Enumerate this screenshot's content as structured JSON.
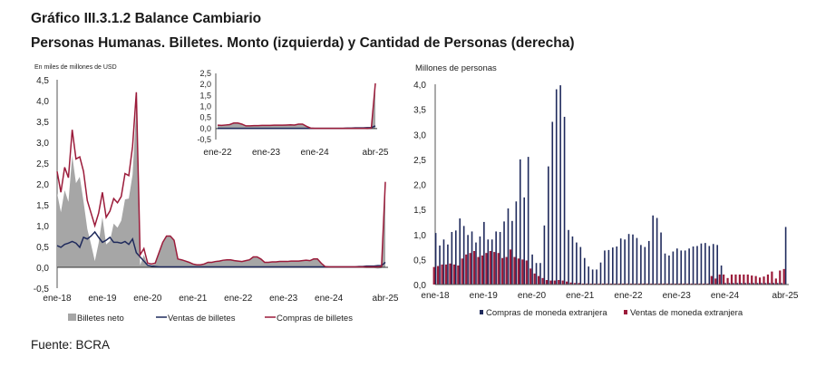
{
  "title_line1": "Gráfico III.3.1.2 Balance Cambiario",
  "title_line2": "Personas Humanas. Billetes. Monto (izquierda) y Cantidad de Personas (derecha)",
  "source": "Fuente: BCRA",
  "chart_data": [
    {
      "type": "area+line",
      "ylabel": "En miles de millones de USD",
      "ylim": [
        -0.5,
        4.5
      ],
      "yticks": [
        "4,5",
        "4,0",
        "3,5",
        "3,0",
        "2,5",
        "2,0",
        "1,5",
        "1,0",
        "0,5",
        "0,0",
        "-0,5"
      ],
      "xticks": [
        "ene-18",
        "ene-19",
        "ene-20",
        "ene-21",
        "ene-22",
        "ene-23",
        "ene-24",
        "abr-25"
      ],
      "x_range": [
        "2018-01",
        "2025-04"
      ],
      "legend_position": "bottom",
      "colors": {
        "neto": "#a6a6a6",
        "ventas": "#1f2a5c",
        "compras": "#9b1b3a"
      },
      "series": [
        {
          "name": "Billetes neto",
          "type": "area",
          "values": [
            1.78,
            1.32,
            1.85,
            1.57,
            2.68,
            2.02,
            2.17,
            1.58,
            0.92,
            0.55,
            0.15,
            0.58,
            1.2,
            0.55,
            0.63,
            1.05,
            0.95,
            1.12,
            1.63,
            1.65,
            2.22,
            3.85,
            0.05,
            0.3,
            0.05,
            0.05,
            0.08,
            0.34,
            0.59,
            0.74,
            0.74,
            0.64,
            0.19,
            0.17,
            0.14,
            0.11,
            0.07,
            0.05,
            0.05,
            0.07,
            0.11,
            0.11,
            0.13,
            0.14,
            0.16,
            0.17,
            0.17,
            0.15,
            0.14,
            0.13,
            0.15,
            0.17,
            0.24,
            0.24,
            0.19,
            0.11,
            0.11,
            0.12,
            0.12,
            0.13,
            0.13,
            0.13,
            0.14,
            0.14,
            0.14,
            0.15,
            0.16,
            0.15,
            0.19,
            0.19,
            0.09,
            0.01,
            0,
            0,
            0,
            0,
            0,
            0,
            0,
            0,
            -0.01,
            -0.01,
            -0.02,
            -0.02,
            -0.02,
            -0.03,
            -0.02,
            1.93
          ]
        },
        {
          "name": "Ventas de billetes",
          "type": "line",
          "values": [
            0.52,
            0.48,
            0.55,
            0.58,
            0.62,
            0.58,
            0.48,
            0.72,
            0.68,
            0.75,
            0.85,
            0.72,
            0.6,
            0.65,
            0.72,
            0.6,
            0.6,
            0.58,
            0.62,
            0.55,
            0.68,
            0.35,
            0.25,
            0.15,
            0.05,
            0.03,
            0.02,
            0.01,
            0.01,
            0.01,
            0.01,
            0.01,
            0.01,
            0.01,
            0.01,
            0.01,
            0.01,
            0.01,
            0.01,
            0.01,
            0.01,
            0.01,
            0.01,
            0.01,
            0.01,
            0.01,
            0.01,
            0.01,
            0.01,
            0.01,
            0.01,
            0.01,
            0.01,
            0.01,
            0.01,
            0.01,
            0.01,
            0.01,
            0.01,
            0.01,
            0.01,
            0.01,
            0.01,
            0.01,
            0.01,
            0.01,
            0.01,
            0.01,
            0.01,
            0.01,
            0.01,
            0.01,
            0.01,
            0.01,
            0.01,
            0.01,
            0.01,
            0.01,
            0.01,
            0.01,
            0.02,
            0.02,
            0.03,
            0.03,
            0.03,
            0.04,
            0.04,
            0.12
          ]
        },
        {
          "name": "Compras de billetes",
          "type": "line",
          "values": [
            2.3,
            1.8,
            2.4,
            2.15,
            3.3,
            2.6,
            2.65,
            2.3,
            1.6,
            1.3,
            1.0,
            1.3,
            1.8,
            1.2,
            1.35,
            1.65,
            1.55,
            1.7,
            2.25,
            2.2,
            2.9,
            4.2,
            0.3,
            0.45,
            0.1,
            0.08,
            0.1,
            0.35,
            0.6,
            0.75,
            0.75,
            0.65,
            0.2,
            0.18,
            0.15,
            0.12,
            0.08,
            0.06,
            0.06,
            0.08,
            0.12,
            0.12,
            0.14,
            0.15,
            0.17,
            0.18,
            0.18,
            0.16,
            0.15,
            0.14,
            0.16,
            0.18,
            0.25,
            0.25,
            0.2,
            0.12,
            0.12,
            0.13,
            0.13,
            0.14,
            0.14,
            0.14,
            0.15,
            0.15,
            0.15,
            0.16,
            0.17,
            0.16,
            0.2,
            0.2,
            0.1,
            0.02,
            0.01,
            0.01,
            0.01,
            0.01,
            0.01,
            0.01,
            0.01,
            0.01,
            0.01,
            0.01,
            0.01,
            0.01,
            0.01,
            0.01,
            0.02,
            2.05
          ]
        }
      ],
      "inset": {
        "ylim": [
          -0.5,
          2.5
        ],
        "yticks": [
          "2,5",
          "2,0",
          "1,5",
          "1,0",
          "0,5",
          "0,0",
          "-0,5"
        ],
        "xticks": [
          "ene-22",
          "ene-23",
          "ene-24",
          "abr-25"
        ],
        "x_range": [
          "2022-01",
          "2025-04"
        ]
      }
    },
    {
      "type": "bar",
      "ylabel": "Millones de personas",
      "ylim": [
        0,
        4.0
      ],
      "yticks": [
        "4,0",
        "3,5",
        "3,0",
        "2,5",
        "2,0",
        "1,5",
        "1,0",
        "0,5",
        "0,0"
      ],
      "xticks": [
        "ene-18",
        "ene-19",
        "ene-20",
        "ene-21",
        "ene-22",
        "ene-23",
        "ene-24",
        "abr-25"
      ],
      "x_range": [
        "2018-01",
        "2025-04"
      ],
      "legend_position": "bottom",
      "colors": {
        "compras": "#1f2a5c",
        "ventas": "#9b1b3a"
      },
      "series": [
        {
          "name": "Compras de moneda extranjera",
          "values": [
            1.03,
            0.78,
            0.9,
            0.8,
            1.05,
            1.08,
            1.32,
            1.17,
            0.99,
            1.06,
            0.84,
            0.96,
            1.25,
            0.9,
            0.9,
            1.06,
            1.05,
            1.26,
            1.52,
            1.27,
            1.66,
            2.5,
            1.74,
            2.55,
            0.6,
            0.43,
            0.43,
            1.18,
            2.36,
            3.25,
            3.9,
            3.98,
            3.35,
            1.09,
            0.96,
            0.84,
            0.75,
            0.53,
            0.36,
            0.3,
            0.3,
            0.44,
            0.68,
            0.69,
            0.74,
            0.76,
            0.92,
            0.9,
            1.01,
            1.0,
            0.93,
            0.79,
            0.75,
            0.87,
            1.38,
            1.33,
            1.04,
            0.62,
            0.58,
            0.66,
            0.72,
            0.68,
            0.68,
            0.72,
            0.76,
            0.77,
            0.82,
            0.83,
            0.77,
            0.81,
            0.79,
            0.38,
            0.03,
            0.03,
            0.03,
            0.03,
            0.03,
            0.03,
            0.03,
            0.03,
            0.03,
            0.03,
            0.03,
            0.03,
            0.03,
            0.03,
            0.03,
            1.15
          ]
        },
        {
          "name": "Ventas de moneda extranjera",
          "values": [
            0.35,
            0.37,
            0.4,
            0.4,
            0.42,
            0.4,
            0.38,
            0.52,
            0.6,
            0.63,
            0.67,
            0.55,
            0.58,
            0.63,
            0.67,
            0.65,
            0.63,
            0.53,
            0.55,
            0.7,
            0.55,
            0.52,
            0.5,
            0.48,
            0.32,
            0.22,
            0.17,
            0.13,
            0.09,
            0.08,
            0.08,
            0.09,
            0.08,
            0.06,
            0.04,
            0.03,
            0.03,
            0.02,
            0.02,
            0.02,
            0.02,
            0.02,
            0.02,
            0.02,
            0.02,
            0.02,
            0.02,
            0.02,
            0.02,
            0.02,
            0.02,
            0.02,
            0.02,
            0.02,
            0.02,
            0.02,
            0.02,
            0.02,
            0.02,
            0.02,
            0.02,
            0.02,
            0.02,
            0.02,
            0.02,
            0.02,
            0.02,
            0.02,
            0.02,
            0.17,
            0.12,
            0.2,
            0.2,
            0.13,
            0.2,
            0.2,
            0.2,
            0.2,
            0.2,
            0.18,
            0.17,
            0.14,
            0.16,
            0.2,
            0.26,
            0.12,
            0.28,
            0.31
          ]
        }
      ]
    }
  ]
}
